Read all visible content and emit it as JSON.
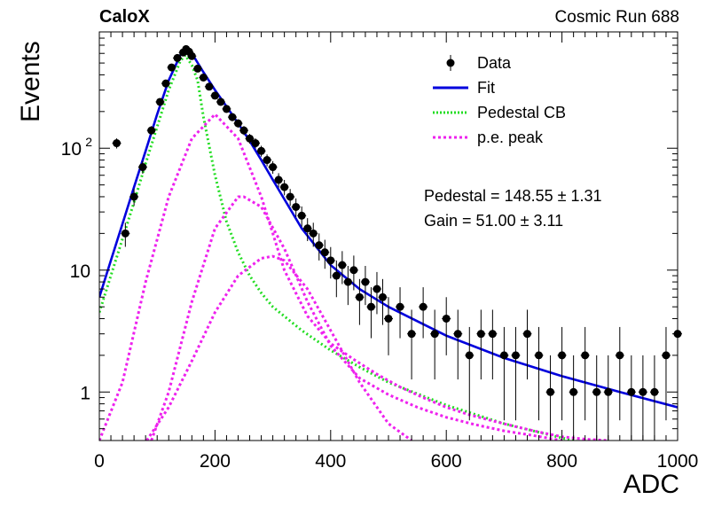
{
  "header": {
    "tag": "CaloX",
    "run_label": "Cosmic Run 688"
  },
  "legend": {
    "position": "top-right",
    "entries": [
      {
        "label": "Data",
        "style": "marker",
        "color": "#000000"
      },
      {
        "label": "Fit",
        "style": "line",
        "color": "#0000dd"
      },
      {
        "label": "Pedestal CB",
        "style": "dotted",
        "color": "#22dd22"
      },
      {
        "label": "p.e. peak",
        "style": "dashed",
        "color": "#ee22ee"
      }
    ]
  },
  "annotations": {
    "pedestal": "Pedestal = 148.55 ± 1.31",
    "gain": "Gain = 51.00 ± 3.11"
  },
  "chart_data": {
    "type": "scatter",
    "title": "",
    "xlabel": "ADC",
    "ylabel": "Events",
    "xlim": [
      0,
      1000
    ],
    "ylim": [
      0.4,
      900
    ],
    "yscale": "log",
    "xticks": [
      0,
      200,
      400,
      600,
      800,
      1000
    ],
    "yticks": [
      {
        "value": 1,
        "label": "1"
      },
      {
        "value": 10,
        "label": "10"
      },
      {
        "value": 100,
        "label": "10²"
      }
    ],
    "grid": false,
    "series": [
      {
        "name": "Data",
        "kind": "points_with_errors",
        "x": [
          30,
          45,
          60,
          75,
          90,
          105,
          115,
          125,
          135,
          145,
          150,
          155,
          160,
          170,
          180,
          190,
          200,
          210,
          220,
          230,
          240,
          250,
          260,
          270,
          280,
          290,
          300,
          310,
          320,
          330,
          340,
          350,
          360,
          370,
          380,
          390,
          400,
          410,
          420,
          430,
          440,
          450,
          460,
          470,
          480,
          490,
          500,
          520,
          540,
          560,
          580,
          600,
          620,
          640,
          660,
          680,
          700,
          720,
          740,
          760,
          780,
          800,
          820,
          840,
          860,
          880,
          900,
          920,
          940,
          960,
          980,
          1000
        ],
        "y": [
          110,
          20,
          40,
          70,
          140,
          240,
          340,
          460,
          550,
          610,
          650,
          620,
          570,
          450,
          380,
          320,
          270,
          240,
          210,
          180,
          160,
          140,
          120,
          110,
          95,
          80,
          70,
          55,
          48,
          40,
          33,
          28,
          22,
          20,
          16,
          14,
          12,
          9,
          11,
          8,
          10,
          6,
          8,
          5,
          7,
          6,
          4,
          5,
          3,
          5,
          3,
          4,
          3,
          2,
          3,
          3,
          2,
          2,
          3,
          2,
          1,
          2,
          1,
          2,
          1,
          1,
          2,
          1,
          1,
          1,
          2,
          3
        ]
      },
      {
        "name": "Fit",
        "kind": "line",
        "color": "#0000dd",
        "x": [
          0,
          20,
          40,
          60,
          80,
          100,
          120,
          140,
          150,
          160,
          180,
          200,
          220,
          240,
          260,
          280,
          300,
          350,
          400,
          450,
          500,
          600,
          700,
          800,
          900,
          1000
        ],
        "y": [
          6,
          12,
          24,
          48,
          95,
          190,
          360,
          580,
          650,
          600,
          420,
          300,
          220,
          160,
          115,
          80,
          55,
          22,
          11,
          7,
          5,
          2.9,
          1.9,
          1.35,
          1.0,
          0.75
        ]
      },
      {
        "name": "Pedestal CB",
        "kind": "line",
        "color": "#22dd22",
        "x": [
          0,
          20,
          40,
          60,
          80,
          100,
          120,
          140,
          148.55,
          160,
          170,
          180,
          200,
          220,
          240,
          260,
          280,
          300,
          350,
          400,
          450,
          500,
          600,
          700,
          800,
          900
        ],
        "y": [
          4.5,
          9,
          18,
          36,
          75,
          150,
          300,
          520,
          580,
          480,
          360,
          180,
          60,
          25,
          14,
          9,
          6.5,
          5,
          3.2,
          2.2,
          1.6,
          1.2,
          0.78,
          0.55,
          0.42,
          0.33
        ]
      },
      {
        "name": "p.e. peak 1",
        "kind": "line",
        "color": "#ee22ee",
        "x": [
          0,
          40,
          80,
          120,
          160,
          200,
          240,
          280,
          320,
          360,
          400,
          440,
          480,
          520,
          560,
          600,
          640,
          680,
          720,
          760,
          800,
          840,
          880
        ],
        "y": [
          0.4,
          1.2,
          8,
          40,
          120,
          190,
          120,
          40,
          10,
          4.2,
          2.5,
          1.85,
          1.4,
          1.1,
          0.9,
          0.75,
          0.65,
          0.58,
          0.52,
          0.47,
          0.43,
          0.41,
          0.4
        ]
      },
      {
        "name": "p.e. peak 2",
        "kind": "line",
        "color": "#ee22ee",
        "x": [
          90,
          120,
          160,
          200,
          240,
          250,
          280,
          320,
          360,
          400,
          450,
          500,
          550,
          600,
          650,
          700,
          750,
          800
        ],
        "y": [
          0.4,
          1.0,
          5.5,
          22,
          40,
          40,
          33,
          15,
          5.5,
          2.4,
          1.3,
          0.95,
          0.75,
          0.62,
          0.54,
          0.48,
          0.44,
          0.4
        ]
      },
      {
        "name": "p.e. peak 3",
        "kind": "line",
        "color": "#ee22ee",
        "x": [
          82,
          120,
          160,
          200,
          240,
          280,
          300,
          320,
          360,
          400,
          450,
          500,
          540
        ],
        "y": [
          0.4,
          0.75,
          1.8,
          4.5,
          9,
          12.5,
          13,
          12,
          7,
          3.2,
          1.2,
          0.55,
          0.4
        ]
      }
    ]
  }
}
